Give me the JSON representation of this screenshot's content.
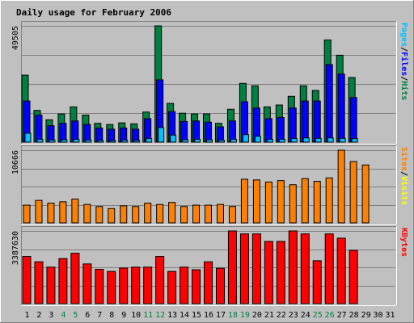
{
  "chart_data": {
    "type": "bar",
    "title": "Daily usage for February 2006",
    "colors": {
      "background": "#C0C0C0",
      "title": "#0000FF",
      "hits": "#008040",
      "files": "#0000FF",
      "pages": "#00C0FF",
      "visits": "#FFFF00",
      "sites": "#FF8000",
      "kbytes": "#FF0000",
      "weekend_label": "#008040",
      "separator": "#000000"
    },
    "categories": [
      "1",
      "2",
      "3",
      "4",
      "5",
      "6",
      "7",
      "8",
      "9",
      "10",
      "11",
      "12",
      "13",
      "14",
      "15",
      "16",
      "17",
      "18",
      "19",
      "20",
      "21",
      "22",
      "23",
      "24",
      "25",
      "26",
      "27",
      "28",
      "29",
      "30",
      "31"
    ],
    "weekend_days": [
      "4",
      "5",
      "11",
      "12",
      "18",
      "19",
      "25",
      "26"
    ],
    "panels": [
      {
        "key": "usage",
        "max_label": "49505",
        "ylim": [
          0,
          49505
        ],
        "side_labels": [
          {
            "text": "Pages",
            "color": "#00C0FF"
          },
          {
            "text": "/",
            "color": "#000000"
          },
          {
            "text": "Files",
            "color": "#0000FF"
          },
          {
            "text": "/",
            "color": "#000000"
          },
          {
            "text": "Hits",
            "color": "#008040"
          }
        ],
        "series": [
          {
            "name": "Hits",
            "color": "#008040",
            "values": [
              28500,
              13500,
              9500,
              12000,
              15000,
              11500,
              8000,
              7500,
              8200,
              7800,
              12800,
              49505,
              16500,
              12300,
              12000,
              12000,
              8000,
              14000,
              25000,
              24000,
              15000,
              15800,
              19500,
              24000,
              22000,
              43500,
              37000,
              27500,
              0,
              0,
              0
            ]
          },
          {
            "name": "Files",
            "color": "#0000FF",
            "values": [
              17500,
              11500,
              7000,
              8000,
              9000,
              7500,
              6000,
              5500,
              6000,
              5500,
              10000,
              26500,
              13000,
              8800,
              9000,
              8500,
              6500,
              9000,
              17200,
              14500,
              10000,
              10500,
              14500,
              17500,
              17500,
              33000,
              29000,
              19000,
              0,
              0,
              0
            ]
          },
          {
            "name": "Pages",
            "color": "#00C0FF",
            "values": [
              3800,
              1200,
              900,
              1000,
              1200,
              900,
              700,
              600,
              800,
              700,
              1500,
              6200,
              3000,
              1000,
              1200,
              1000,
              800,
              1200,
              3200,
              2500,
              1200,
              1200,
              1500,
              1800,
              1600,
              1800,
              1600,
              1500,
              0,
              0,
              0
            ]
          }
        ]
      },
      {
        "key": "sites",
        "max_label": "10666",
        "ylim": [
          0,
          10666
        ],
        "side_labels": [
          {
            "text": "Sites",
            "color": "#FF8000"
          },
          {
            "text": "/",
            "color": "#000000"
          },
          {
            "text": "Visits",
            "color": "#FFFF00"
          }
        ],
        "series": [
          {
            "name": "Sites",
            "color": "#FF8000",
            "values": [
              2600,
              3300,
              2900,
              3100,
              3500,
              2700,
              2400,
              2100,
              2500,
              2400,
              2900,
              2700,
              3000,
              2400,
              2600,
              2600,
              2700,
              2400,
              6400,
              6300,
              6000,
              6200,
              5600,
              6500,
              6100,
              6600,
              10666,
              9000,
              8500,
              0,
              0
            ]
          },
          {
            "name": "Visits",
            "color": "#FFFF00",
            "values": [
              0,
              0,
              0,
              0,
              0,
              0,
              0,
              0,
              0,
              0,
              0,
              0,
              0,
              0,
              0,
              0,
              0,
              0,
              0,
              0,
              0,
              0,
              0,
              0,
              0,
              0,
              0,
              0,
              0,
              0,
              0
            ]
          }
        ]
      },
      {
        "key": "kbytes",
        "max_label": "3387630",
        "ylim": [
          0,
          3387630
        ],
        "side_labels": [
          {
            "text": "KBytes",
            "color": "#FF0000"
          }
        ],
        "series": [
          {
            "name": "KBytes",
            "color": "#FF0000",
            "values": [
              2200000,
              1950000,
              1700000,
              2100000,
              2350000,
              1850000,
              1600000,
              1500000,
              1660000,
              1700000,
              1700000,
              2200000,
              1500000,
              1700000,
              1580000,
              1950000,
              1650000,
              3387630,
              3250000,
              3250000,
              2900000,
              2900000,
              3387630,
              3250000,
              2000000,
              3250000,
              3050000,
              2480000,
              0,
              0,
              0
            ]
          }
        ]
      }
    ]
  }
}
